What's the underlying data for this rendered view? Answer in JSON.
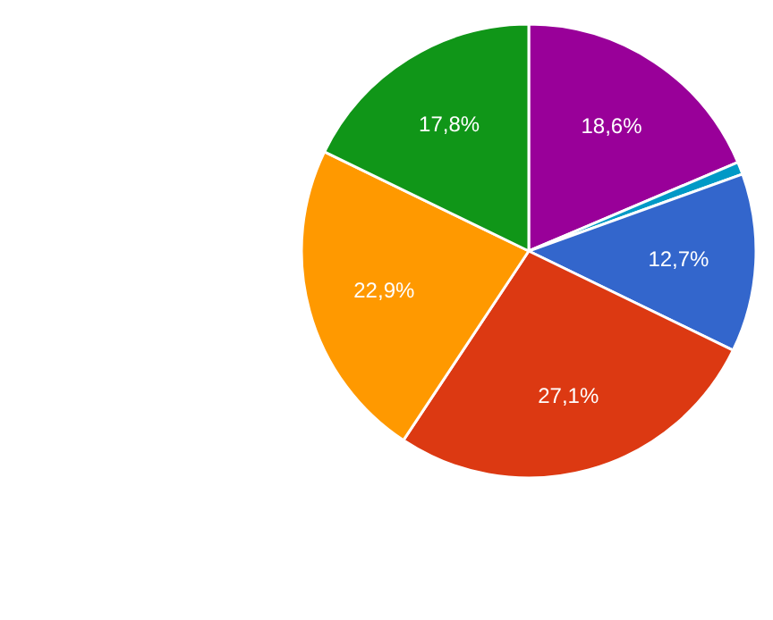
{
  "chart_data": {
    "type": "pie",
    "categories": [
      null,
      null,
      null,
      null,
      null,
      null
    ],
    "values": [
      18.6,
      0.9,
      12.7,
      27.1,
      22.9,
      17.8
    ],
    "colors": [
      "#990099",
      "#0099c6",
      "#3366cc",
      "#dc3912",
      "#ff9900",
      "#109618"
    ],
    "value_labels": [
      "18,6%",
      null,
      "12,7%",
      "27,1%",
      "22,9%",
      "17,8%"
    ]
  }
}
